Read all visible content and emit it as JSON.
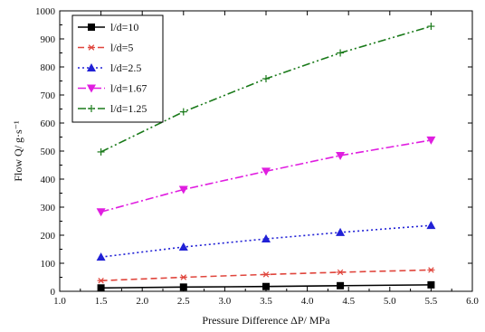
{
  "chart_data": {
    "type": "line",
    "title": "",
    "xlabel": "Pressure Difference  ΔP/ MPa",
    "ylabel": "Flow  Q/ g·s⁻¹",
    "xlim": [
      1.0,
      6.0
    ],
    "ylim": [
      0,
      1000
    ],
    "x_ticks": [
      "1.0",
      "1.5",
      "2.0",
      "2.5",
      "3.0",
      "3.5",
      "4.0",
      "4.5",
      "5.0",
      "5.5",
      "6.0"
    ],
    "y_ticks": [
      "0",
      "100",
      "200",
      "300",
      "400",
      "500",
      "600",
      "700",
      "800",
      "900",
      "1000"
    ],
    "grid": false,
    "legend_position": "top-left",
    "series": [
      {
        "name": "l/d=10",
        "color": "#000000",
        "dash": "solid",
        "marker": "square",
        "x": [
          1.5,
          2.5,
          3.5,
          4.4,
          5.5
        ],
        "y": [
          12,
          15,
          17,
          20,
          23
        ]
      },
      {
        "name": "l/d=5",
        "color": "#e0453c",
        "dash": "dashed",
        "marker": "asterisk",
        "x": [
          1.5,
          2.5,
          3.5,
          4.4,
          5.5
        ],
        "y": [
          38,
          50,
          60,
          68,
          76
        ]
      },
      {
        "name": "l/d=2.5",
        "color": "#2121d6",
        "dash": "dotted",
        "marker": "triangle-up",
        "x": [
          1.5,
          2.5,
          3.5,
          4.4,
          5.5
        ],
        "y": [
          122,
          158,
          187,
          210,
          235
        ]
      },
      {
        "name": "l/d=1.67",
        "color": "#e01ee0",
        "dash": "dashdot",
        "marker": "triangle-down",
        "x": [
          1.5,
          2.5,
          3.5,
          4.4,
          5.5
        ],
        "y": [
          283,
          363,
          428,
          484,
          539
        ]
      },
      {
        "name": "l/d=1.25",
        "color": "#1a7a1a",
        "dash": "dashdotdot",
        "marker": "plus",
        "x": [
          1.5,
          2.5,
          3.5,
          4.4,
          5.5
        ],
        "y": [
          497,
          640,
          758,
          850,
          945
        ]
      }
    ]
  }
}
